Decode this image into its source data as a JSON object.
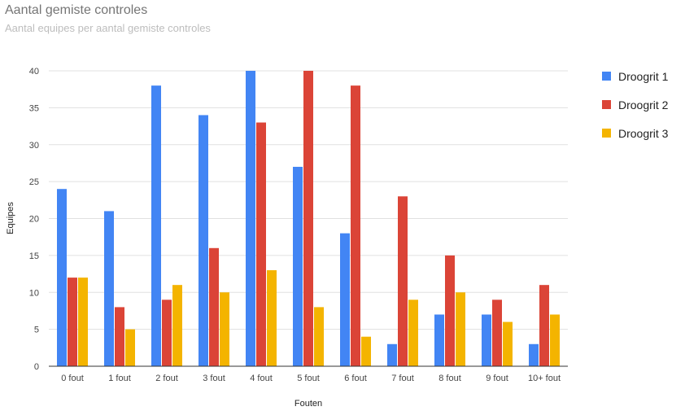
{
  "chart_data": {
    "type": "bar",
    "title": "Aantal gemiste controles",
    "subtitle": "Aantal equipes per aantal gemiste controles",
    "xlabel": "Fouten",
    "ylabel": "Equipes",
    "ylim": [
      0,
      40
    ],
    "yticks": [
      0,
      5,
      10,
      15,
      20,
      25,
      30,
      35,
      40
    ],
    "grid": true,
    "legend_position": "right",
    "categories": [
      "0 fout",
      "1 fout",
      "2 fout",
      "3 fout",
      "4 fout",
      "5 fout",
      "6 fout",
      "7 fout",
      "8 fout",
      "9 fout",
      "10+ fout"
    ],
    "series": [
      {
        "name": "Droogrit 1",
        "color": "#4285f4",
        "values": [
          24,
          21,
          38,
          34,
          40,
          27,
          18,
          3,
          7,
          7,
          3
        ]
      },
      {
        "name": "Droogrit 2",
        "color": "#db4437",
        "values": [
          12,
          8,
          9,
          16,
          33,
          40,
          38,
          23,
          15,
          9,
          11
        ]
      },
      {
        "name": "Droogrit 3",
        "color": "#f4b400",
        "values": [
          12,
          5,
          11,
          10,
          13,
          8,
          4,
          9,
          10,
          6,
          7
        ]
      }
    ]
  }
}
